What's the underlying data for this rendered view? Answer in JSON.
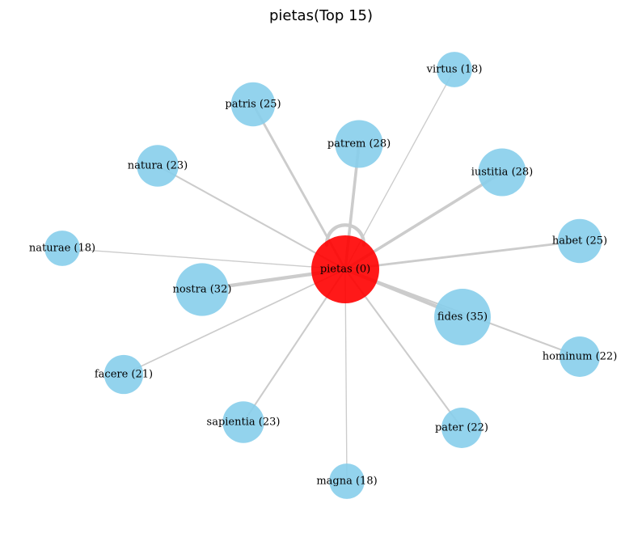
{
  "title": "pietas(Top 15)",
  "colors": {
    "center": "#ff0000",
    "node": "#87ceeb",
    "edge": "#cccccc",
    "background": "#ffffff"
  },
  "center": {
    "label": "pietas (0)",
    "word": "pietas",
    "score": 0
  },
  "nodes": [
    {
      "label": "virtus (18)",
      "word": "virtus",
      "score": 18,
      "edge_weight": 1
    },
    {
      "label": "patris (25)",
      "word": "patris",
      "score": 25,
      "edge_weight": 3
    },
    {
      "label": "patrem (28)",
      "word": "patrem",
      "score": 28,
      "edge_weight": 4
    },
    {
      "label": "iustitia (28)",
      "word": "iustitia",
      "score": 28,
      "edge_weight": 4
    },
    {
      "label": "natura (23)",
      "word": "natura",
      "score": 23,
      "edge_weight": 2
    },
    {
      "label": "habet (25)",
      "word": "habet",
      "score": 25,
      "edge_weight": 3
    },
    {
      "label": "naturae (18)",
      "word": "naturae",
      "score": 18,
      "edge_weight": 1
    },
    {
      "label": "nostra (32)",
      "word": "nostra",
      "score": 32,
      "edge_weight": 5
    },
    {
      "label": "fides (35)",
      "word": "fides",
      "score": 35,
      "edge_weight": 5
    },
    {
      "label": "hominum (22)",
      "word": "hominum",
      "score": 22,
      "edge_weight": 2
    },
    {
      "label": "facere (21)",
      "word": "facere",
      "score": 21,
      "edge_weight": 1.5
    },
    {
      "label": "sapientia (23)",
      "word": "sapientia",
      "score": 23,
      "edge_weight": 2
    },
    {
      "label": "pater (22)",
      "word": "pater",
      "score": 22,
      "edge_weight": 2
    },
    {
      "label": "magna (18)",
      "word": "magna",
      "score": 18,
      "edge_weight": 1
    }
  ],
  "self_loop_weight": 5
}
